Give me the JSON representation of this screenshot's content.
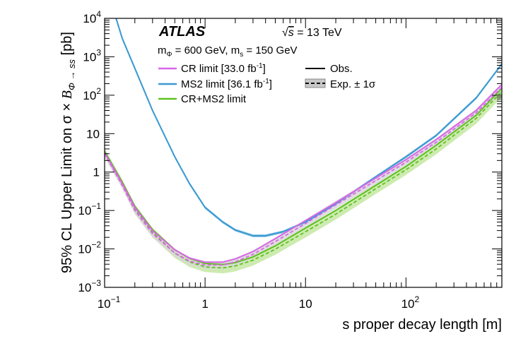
{
  "chart_data": {
    "type": "line",
    "title": "",
    "experiment": "ATLAS",
    "energy_label": "√s = 13 TeV",
    "energy_parts": {
      "root": "√",
      "s": "s",
      "rest": " = 13 TeV"
    },
    "mass_label": "m_Φ = 600 GeV, m_s = 150 GeV",
    "mass_parts": {
      "m1": "m",
      "sub1": "Φ",
      "mid": " = 600 GeV, m",
      "sub2": "s",
      "end": " = 150 GeV"
    },
    "xlabel": "s proper decay length [m]",
    "ylabel": "95% CL Upper Limit on σ × B_Φ → ss [pb]",
    "ylabel_parts": {
      "main": "95% CL Upper Limit on σ × ",
      "B": "B",
      "sub": "Φ → ss",
      "end": " [pb]"
    },
    "xscale": "log",
    "yscale": "log",
    "xlim": [
      0.1,
      900
    ],
    "ylim": [
      0.001,
      10000
    ],
    "x_ticks": [
      {
        "value": 0.1,
        "base": "10",
        "exp": "−1"
      },
      {
        "value": 1,
        "base": "1",
        "exp": ""
      },
      {
        "value": 10,
        "base": "10",
        "exp": ""
      },
      {
        "value": 100,
        "base": "10",
        "exp": "2"
      }
    ],
    "y_ticks": [
      {
        "value": 0.001,
        "base": "10",
        "exp": "−3"
      },
      {
        "value": 0.01,
        "base": "10",
        "exp": "−2"
      },
      {
        "value": 0.1,
        "base": "10",
        "exp": "−1"
      },
      {
        "value": 1,
        "base": "1",
        "exp": ""
      },
      {
        "value": 10,
        "base": "10",
        "exp": ""
      },
      {
        "value": 100,
        "base": "10",
        "exp": "2"
      },
      {
        "value": 1000,
        "base": "10",
        "exp": "3"
      },
      {
        "value": 10000,
        "base": "10",
        "exp": "4"
      }
    ],
    "legend": {
      "placement": "top",
      "left": [
        {
          "series": "CR limit",
          "label": "CR limit [33.0 fb",
          "sup": "-1",
          "close": "]",
          "color": "#d966e8"
        },
        {
          "series": "MS2 limit",
          "label": "MS2 limit [36.1 fb",
          "sup": "-1",
          "close": "]",
          "color": "#3b9ad1"
        },
        {
          "series": "CR+MS2 limit",
          "label": "CR+MS2 limit",
          "sup": "",
          "close": "",
          "color": "#5fc21f"
        }
      ],
      "right": [
        {
          "label": "Obs.",
          "style": "solid",
          "color": "#000000"
        },
        {
          "label": "Exp. ± 1σ",
          "style": "dashed-band",
          "color": "#000000"
        }
      ]
    },
    "series": [
      {
        "name": "CR limit",
        "color": "#d966e8",
        "band_color": "#d8d8d8",
        "observed": [
          [
            0.1,
            3.2
          ],
          [
            0.15,
            0.5
          ],
          [
            0.2,
            0.12
          ],
          [
            0.3,
            0.03
          ],
          [
            0.5,
            0.0095
          ],
          [
            0.7,
            0.0058
          ],
          [
            1,
            0.0045
          ],
          [
            1.5,
            0.0045
          ],
          [
            2,
            0.0055
          ],
          [
            3,
            0.0085
          ],
          [
            5,
            0.0185
          ],
          [
            10,
            0.055
          ],
          [
            20,
            0.16
          ],
          [
            50,
            0.7
          ],
          [
            100,
            2.1
          ],
          [
            200,
            7
          ],
          [
            500,
            40
          ],
          [
            900,
            190
          ]
        ],
        "expected": [
          [
            0.1,
            3
          ],
          [
            0.15,
            0.45
          ],
          [
            0.2,
            0.1
          ],
          [
            0.3,
            0.025
          ],
          [
            0.5,
            0.0078
          ],
          [
            0.7,
            0.0048
          ],
          [
            1,
            0.0038
          ],
          [
            1.5,
            0.0038
          ],
          [
            2,
            0.0046
          ],
          [
            3,
            0.0072
          ],
          [
            5,
            0.0155
          ],
          [
            10,
            0.046
          ],
          [
            20,
            0.14
          ],
          [
            50,
            0.6
          ],
          [
            100,
            1.8
          ],
          [
            200,
            6
          ],
          [
            500,
            35
          ],
          [
            900,
            160
          ]
        ],
        "expected_lo": [
          [
            0.1,
            2.5
          ],
          [
            0.15,
            0.37
          ],
          [
            0.2,
            0.08
          ],
          [
            0.3,
            0.02
          ],
          [
            0.5,
            0.0062
          ],
          [
            0.7,
            0.0038
          ],
          [
            1,
            0.003
          ],
          [
            1.5,
            0.003
          ],
          [
            2,
            0.0036
          ],
          [
            3,
            0.0057
          ],
          [
            5,
            0.0122
          ],
          [
            10,
            0.036
          ],
          [
            20,
            0.11
          ],
          [
            50,
            0.47
          ],
          [
            100,
            1.4
          ],
          [
            200,
            4.7
          ],
          [
            500,
            27
          ],
          [
            900,
            125
          ]
        ],
        "expected_hi": [
          [
            0.1,
            3.6
          ],
          [
            0.15,
            0.56
          ],
          [
            0.2,
            0.125
          ],
          [
            0.3,
            0.031
          ],
          [
            0.5,
            0.0098
          ],
          [
            0.7,
            0.006
          ],
          [
            1,
            0.0048
          ],
          [
            1.5,
            0.0048
          ],
          [
            2,
            0.0058
          ],
          [
            3,
            0.0091
          ],
          [
            5,
            0.0197
          ],
          [
            10,
            0.058
          ],
          [
            20,
            0.178
          ],
          [
            50,
            0.76
          ],
          [
            100,
            2.3
          ],
          [
            200,
            7.6
          ],
          [
            500,
            44
          ],
          [
            900,
            205
          ]
        ]
      },
      {
        "name": "MS2 limit",
        "color": "#3b9ad1",
        "band_color": "#7fc0e8",
        "observed": [
          [
            0.13,
            10000
          ],
          [
            0.15,
            3000
          ],
          [
            0.2,
            500
          ],
          [
            0.3,
            40
          ],
          [
            0.5,
            2.5
          ],
          [
            0.7,
            0.5
          ],
          [
            1,
            0.12
          ],
          [
            1.5,
            0.05
          ],
          [
            2,
            0.031
          ],
          [
            3,
            0.022
          ],
          [
            4,
            0.022
          ],
          [
            6,
            0.028
          ],
          [
            10,
            0.05
          ],
          [
            20,
            0.15
          ],
          [
            50,
            0.75
          ],
          [
            100,
            2.5
          ],
          [
            200,
            9
          ],
          [
            500,
            85
          ],
          [
            900,
            650
          ]
        ],
        "expected": [
          [
            0.13,
            10000
          ],
          [
            0.15,
            3000
          ],
          [
            0.2,
            500
          ],
          [
            0.3,
            40
          ],
          [
            0.5,
            2.5
          ],
          [
            0.7,
            0.5
          ],
          [
            1,
            0.12
          ],
          [
            1.5,
            0.05
          ],
          [
            2,
            0.031
          ],
          [
            3,
            0.022
          ],
          [
            4,
            0.022
          ],
          [
            6,
            0.028
          ],
          [
            10,
            0.05
          ],
          [
            20,
            0.15
          ],
          [
            50,
            0.75
          ],
          [
            100,
            2.5
          ],
          [
            200,
            9
          ],
          [
            500,
            85
          ],
          [
            900,
            650
          ]
        ],
        "expected_lo": [
          [
            0.13,
            9300
          ],
          [
            0.15,
            2800
          ],
          [
            0.2,
            465
          ],
          [
            0.3,
            37
          ],
          [
            0.5,
            2.3
          ],
          [
            0.7,
            0.46
          ],
          [
            1,
            0.11
          ],
          [
            1.5,
            0.046
          ],
          [
            2,
            0.0285
          ],
          [
            3,
            0.0202
          ],
          [
            4,
            0.0202
          ],
          [
            6,
            0.0258
          ],
          [
            10,
            0.046
          ],
          [
            20,
            0.138
          ],
          [
            50,
            0.69
          ],
          [
            100,
            2.3
          ],
          [
            200,
            8.3
          ],
          [
            500,
            78
          ],
          [
            900,
            600
          ]
        ],
        "expected_hi": [
          [
            0.13,
            10000
          ],
          [
            0.15,
            3250
          ],
          [
            0.2,
            540
          ],
          [
            0.3,
            43
          ],
          [
            0.5,
            2.7
          ],
          [
            0.7,
            0.54
          ],
          [
            1,
            0.13
          ],
          [
            1.5,
            0.054
          ],
          [
            2,
            0.0335
          ],
          [
            3,
            0.0238
          ],
          [
            4,
            0.0238
          ],
          [
            6,
            0.0302
          ],
          [
            10,
            0.054
          ],
          [
            20,
            0.162
          ],
          [
            50,
            0.81
          ],
          [
            100,
            2.7
          ],
          [
            200,
            9.7
          ],
          [
            500,
            92
          ],
          [
            900,
            700
          ]
        ]
      },
      {
        "name": "CR+MS2 limit",
        "color": "#5fc21f",
        "band_color": "#c4e8a2",
        "observed": [
          [
            0.1,
            3.5
          ],
          [
            0.15,
            0.55
          ],
          [
            0.2,
            0.13
          ],
          [
            0.3,
            0.032
          ],
          [
            0.5,
            0.0095
          ],
          [
            0.7,
            0.0057
          ],
          [
            1,
            0.0042
          ],
          [
            1.5,
            0.0039
          ],
          [
            2,
            0.0044
          ],
          [
            3,
            0.0062
          ],
          [
            5,
            0.012
          ],
          [
            10,
            0.035
          ],
          [
            20,
            0.1
          ],
          [
            50,
            0.45
          ],
          [
            100,
            1.4
          ],
          [
            200,
            5
          ],
          [
            500,
            30
          ],
          [
            900,
            150
          ]
        ],
        "expected": [
          [
            0.1,
            3.2
          ],
          [
            0.15,
            0.5
          ],
          [
            0.2,
            0.11
          ],
          [
            0.3,
            0.027
          ],
          [
            0.5,
            0.0078
          ],
          [
            0.7,
            0.0046
          ],
          [
            1,
            0.0034
          ],
          [
            1.5,
            0.0032
          ],
          [
            2,
            0.0036
          ],
          [
            3,
            0.0051
          ],
          [
            5,
            0.0098
          ],
          [
            10,
            0.028
          ],
          [
            20,
            0.08
          ],
          [
            50,
            0.37
          ],
          [
            100,
            1.15
          ],
          [
            200,
            4
          ],
          [
            500,
            25
          ],
          [
            900,
            125
          ]
        ],
        "expected_lo": [
          [
            0.1,
            2.4
          ],
          [
            0.15,
            0.38
          ],
          [
            0.2,
            0.083
          ],
          [
            0.3,
            0.02
          ],
          [
            0.5,
            0.0058
          ],
          [
            0.7,
            0.0034
          ],
          [
            1,
            0.0025
          ],
          [
            1.5,
            0.0023
          ],
          [
            2,
            0.0026
          ],
          [
            3,
            0.0037
          ],
          [
            5,
            0.0071
          ],
          [
            10,
            0.02
          ],
          [
            20,
            0.058
          ],
          [
            50,
            0.27
          ],
          [
            100,
            0.84
          ],
          [
            200,
            2.9
          ],
          [
            500,
            18
          ],
          [
            900,
            90
          ]
        ],
        "expected_hi": [
          [
            0.1,
            4
          ],
          [
            0.15,
            0.63
          ],
          [
            0.2,
            0.14
          ],
          [
            0.3,
            0.035
          ],
          [
            0.5,
            0.0102
          ],
          [
            0.7,
            0.006
          ],
          [
            1,
            0.0045
          ],
          [
            1.5,
            0.0042
          ],
          [
            2,
            0.0048
          ],
          [
            3,
            0.0068
          ],
          [
            5,
            0.013
          ],
          [
            10,
            0.037
          ],
          [
            20,
            0.106
          ],
          [
            50,
            0.49
          ],
          [
            100,
            1.52
          ],
          [
            200,
            5.3
          ],
          [
            500,
            33
          ],
          [
            900,
            165
          ]
        ]
      }
    ]
  }
}
